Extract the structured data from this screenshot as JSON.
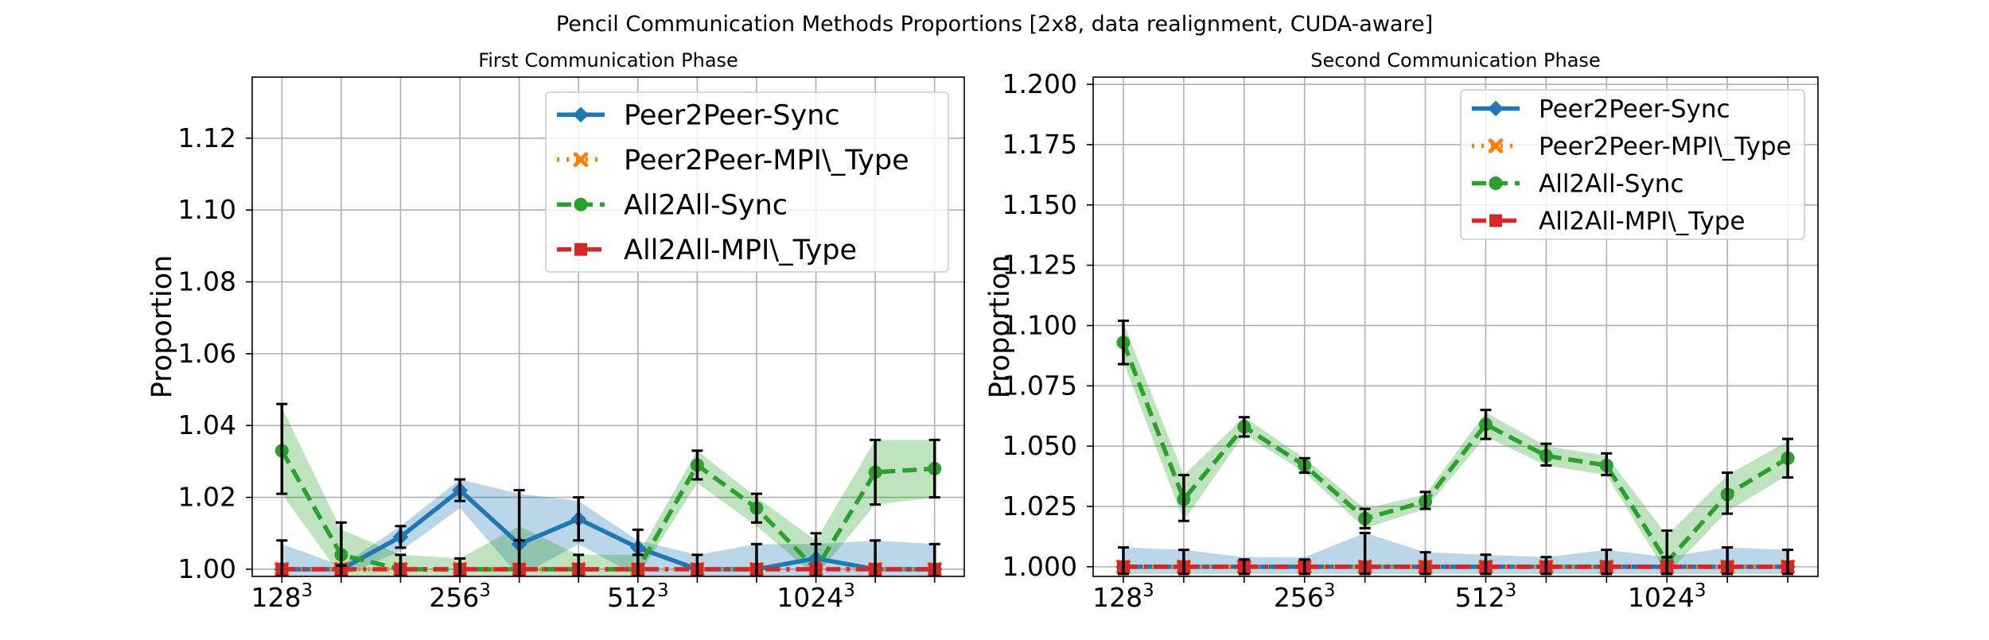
{
  "suptitle": "Pencil Communication Methods Proportions [2x8, data realignment, CUDA-aware]",
  "colors": {
    "Peer2Peer-Sync": "#1f77b4",
    "Peer2Peer-MPI\\_Type": "#ff7f0e",
    "All2All-Sync": "#2ca02c",
    "All2All-MPI\\_Type": "#d62728"
  },
  "chart_data": [
    {
      "type": "line",
      "title": "First Communication Phase",
      "xlabel": "",
      "ylabel": "Proportion",
      "x": [
        0,
        1,
        2,
        3,
        4,
        5,
        6,
        7,
        8,
        9,
        10,
        11
      ],
      "x_ticks": [
        {
          "x": 0,
          "base": "128",
          "exp": "3"
        },
        {
          "x": 3,
          "base": "256",
          "exp": "3"
        },
        {
          "x": 6,
          "base": "512",
          "exp": "3"
        },
        {
          "x": 9,
          "base": "1024",
          "exp": "3"
        }
      ],
      "xlim": [
        -0.5,
        11.5
      ],
      "ylim": [
        0.998,
        1.137
      ],
      "yticks": [
        1.0,
        1.02,
        1.04,
        1.06,
        1.08,
        1.1,
        1.12
      ],
      "ytick_labels": [
        "1.00",
        "1.02",
        "1.04",
        "1.06",
        "1.08",
        "1.10",
        "1.12"
      ],
      "grid": true,
      "legend_position": "upper-right",
      "legend": [
        "Peer2Peer-Sync",
        "Peer2Peer-MPI\\_Type",
        "All2All-Sync",
        "All2All-MPI\\_Type"
      ],
      "series": [
        {
          "name": "Peer2Peer-Sync",
          "style": "solid",
          "marker": "diamond",
          "values": [
            1.0,
            1.0,
            1.009,
            1.022,
            1.007,
            1.014,
            1.006,
            1.0,
            1.0,
            1.003,
            1.0,
            1.0
          ],
          "band_low": [
            0.998,
            0.998,
            1.005,
            1.017,
            0.998,
            1.007,
            0.998,
            0.998,
            0.998,
            0.998,
            0.998,
            0.998
          ],
          "band_high": [
            1.007,
            1.001,
            1.012,
            1.025,
            1.021,
            1.019,
            1.008,
            1.004,
            1.007,
            1.007,
            1.008,
            1.007
          ],
          "err_low": [
            0.998,
            0.998,
            1.006,
            1.019,
            0.998,
            1.008,
            0.998,
            0.998,
            0.998,
            0.998,
            0.998,
            0.998
          ],
          "err_high": [
            1.008,
            1.001,
            1.012,
            1.025,
            1.022,
            1.02,
            1.011,
            1.004,
            1.007,
            1.007,
            1.008,
            1.007
          ]
        },
        {
          "name": "Peer2Peer-MPI\\_Type",
          "style": "dotted",
          "marker": "x",
          "values": [
            1.0,
            1.0,
            1.0,
            1.0,
            1.0,
            1.0,
            1.0,
            1.0,
            1.0,
            1.0,
            1.0,
            1.0
          ]
        },
        {
          "name": "All2All-Sync",
          "style": "dashed",
          "marker": "circle",
          "values": [
            1.033,
            1.004,
            1.0,
            1.0,
            1.0,
            1.0,
            1.0,
            1.029,
            1.017,
            1.0,
            1.027,
            1.028
          ],
          "band_low": [
            1.021,
            0.998,
            0.998,
            0.998,
            0.998,
            0.998,
            0.998,
            1.024,
            1.012,
            0.998,
            1.018,
            1.02
          ],
          "band_high": [
            1.045,
            1.011,
            1.004,
            1.003,
            1.012,
            1.004,
            1.004,
            1.033,
            1.02,
            1.008,
            1.036,
            1.036
          ],
          "err_low": [
            1.021,
            0.998,
            0.998,
            0.998,
            0.998,
            0.998,
            0.998,
            1.025,
            1.013,
            0.998,
            1.018,
            1.02
          ],
          "err_high": [
            1.046,
            1.013,
            1.004,
            1.003,
            1.008,
            1.004,
            1.004,
            1.033,
            1.021,
            1.01,
            1.036,
            1.036
          ]
        },
        {
          "name": "All2All-MPI\\_Type",
          "style": "dashdot",
          "marker": "square",
          "values": [
            1.0,
            1.0,
            1.0,
            1.0,
            1.0,
            1.0,
            1.0,
            1.0,
            1.0,
            1.0,
            1.0,
            1.0
          ]
        }
      ]
    },
    {
      "type": "line",
      "title": "Second Communication Phase",
      "xlabel": "",
      "ylabel": "Proportion",
      "x": [
        0,
        1,
        2,
        3,
        4,
        5,
        6,
        7,
        8,
        9,
        10,
        11
      ],
      "x_ticks": [
        {
          "x": 0,
          "base": "128",
          "exp": "3"
        },
        {
          "x": 3,
          "base": "256",
          "exp": "3"
        },
        {
          "x": 6,
          "base": "512",
          "exp": "3"
        },
        {
          "x": 9,
          "base": "1024",
          "exp": "3"
        }
      ],
      "xlim": [
        -0.5,
        11.5
      ],
      "ylim": [
        0.996,
        1.203
      ],
      "yticks": [
        1.0,
        1.025,
        1.05,
        1.075,
        1.1,
        1.125,
        1.15,
        1.175,
        1.2
      ],
      "ytick_labels": [
        "1.000",
        "1.025",
        "1.050",
        "1.075",
        "1.100",
        "1.125",
        "1.150",
        "1.175",
        "1.200"
      ],
      "grid": true,
      "legend_position": "upper-right",
      "legend": [
        "Peer2Peer-Sync",
        "Peer2Peer-MPI\\_Type",
        "All2All-Sync",
        "All2All-MPI\\_Type"
      ],
      "series": [
        {
          "name": "Peer2Peer-Sync",
          "style": "solid",
          "marker": "diamond",
          "values": [
            1.0,
            1.0,
            1.0,
            1.0,
            1.0,
            1.0,
            1.0,
            1.0,
            1.0,
            1.0,
            1.0,
            1.0
          ],
          "band_low": [
            0.997,
            0.997,
            0.997,
            0.997,
            0.997,
            0.997,
            0.997,
            0.997,
            0.997,
            0.997,
            0.997,
            0.997
          ],
          "band_high": [
            1.008,
            1.007,
            1.004,
            1.004,
            1.014,
            1.006,
            1.005,
            1.004,
            1.007,
            1.004,
            1.008,
            1.007
          ],
          "err_low": [
            0.997,
            0.997,
            0.997,
            0.997,
            0.997,
            0.997,
            0.997,
            0.997,
            0.997,
            0.997,
            0.997,
            0.997
          ],
          "err_high": [
            1.008,
            1.007,
            1.003,
            1.003,
            1.014,
            1.006,
            1.005,
            1.004,
            1.007,
            1.004,
            1.008,
            1.007
          ]
        },
        {
          "name": "Peer2Peer-MPI\\_Type",
          "style": "dotted",
          "marker": "x",
          "values": [
            1.0,
            1.0,
            1.0,
            1.0,
            1.0,
            1.0,
            1.0,
            1.0,
            1.0,
            1.0,
            1.0,
            1.0
          ]
        },
        {
          "name": "All2All-Sync",
          "style": "dashed",
          "marker": "circle",
          "values": [
            1.093,
            1.028,
            1.058,
            1.042,
            1.02,
            1.027,
            1.059,
            1.046,
            1.042,
            1.002,
            1.03,
            1.045
          ],
          "band_low": [
            1.085,
            1.019,
            1.055,
            1.039,
            1.016,
            1.024,
            1.054,
            1.042,
            1.038,
            0.997,
            1.023,
            1.038
          ],
          "band_high": [
            1.101,
            1.038,
            1.062,
            1.045,
            1.024,
            1.03,
            1.064,
            1.05,
            1.046,
            1.013,
            1.038,
            1.052
          ],
          "err_low": [
            1.084,
            1.019,
            1.054,
            1.039,
            1.016,
            1.024,
            1.053,
            1.042,
            1.038,
            0.997,
            1.022,
            1.037
          ],
          "err_high": [
            1.102,
            1.038,
            1.062,
            1.045,
            1.024,
            1.031,
            1.065,
            1.051,
            1.047,
            1.015,
            1.039,
            1.053
          ]
        },
        {
          "name": "All2All-MPI\\_Type",
          "style": "dashdot",
          "marker": "square",
          "values": [
            1.0,
            1.0,
            1.0,
            1.0,
            1.0,
            1.0,
            1.0,
            1.0,
            1.0,
            1.0,
            1.0,
            1.0
          ]
        }
      ]
    }
  ]
}
